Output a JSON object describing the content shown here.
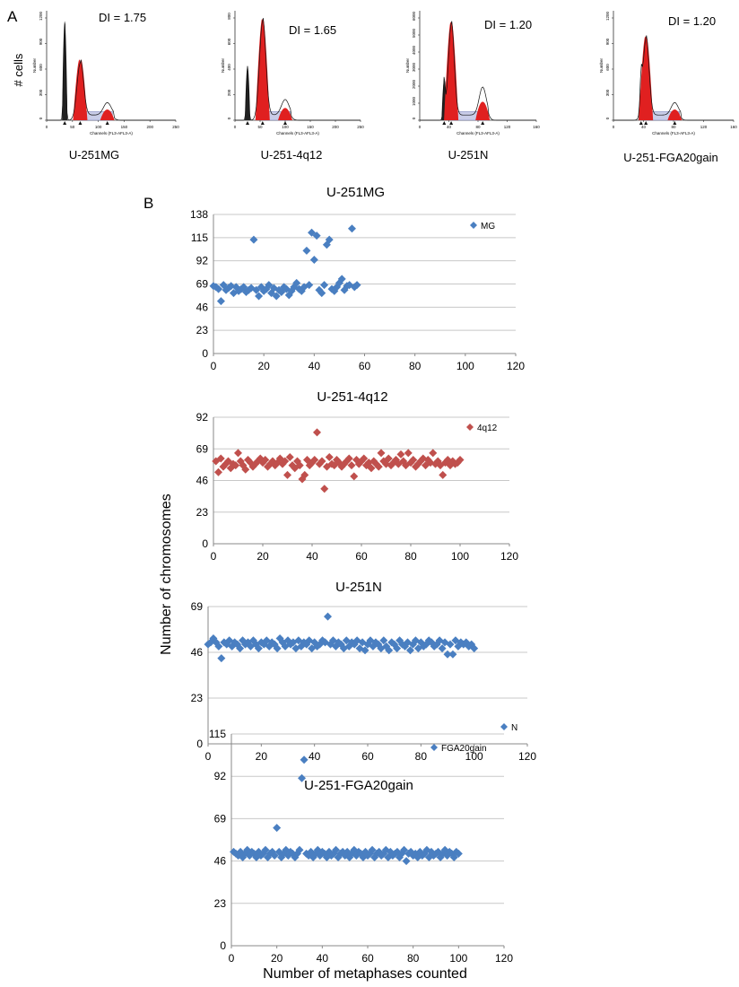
{
  "figure": {
    "panel_a_label": "A",
    "panel_b_label": "B",
    "cells_axis_label": "# cells",
    "shared_ylabel": "Number of chromosomes",
    "shared_xlabel": "Number of metaphases counted"
  },
  "histograms": [
    {
      "name": "U-251MG",
      "di_text": "DI = 1.75",
      "y_axis_text": "Number",
      "x_axis_text": "Channels (FL3-AFL3-A)",
      "x_ticks": [
        "0",
        "50",
        "100",
        "150",
        "200",
        "250"
      ],
      "y_ticks": [
        "0",
        "300",
        "600",
        "900",
        "1200"
      ],
      "peaks_note": "narrow black spike, red G1 peak, red G2 peak"
    },
    {
      "name": "U-251-4q12",
      "di_text": "DI = 1.65",
      "y_axis_text": "Number",
      "x_axis_text": "Channels (FL3-AFL3-A)",
      "x_ticks": [
        "0",
        "50",
        "100",
        "150",
        "200",
        "250"
      ],
      "y_ticks": [
        "0",
        "200",
        "400",
        "600",
        "800"
      ],
      "peaks_note": "narrow black spike, red G1 peak, red G2 peak"
    },
    {
      "name": "U-251N",
      "di_text": "DI = 1.20",
      "y_axis_text": "Number",
      "x_axis_text": "Channels (FL3-AFL3-A)",
      "x_ticks": [
        "0",
        "40",
        "80",
        "120",
        "160"
      ],
      "y_ticks": [
        "0",
        "1000",
        "2000",
        "3000",
        "4000",
        "5000",
        "6000"
      ],
      "peaks_note": "black peak, red G1 peak, red G2 peak"
    },
    {
      "name": "U-251-FGA20gain",
      "di_text": "DI = 1.20",
      "y_axis_text": "Number",
      "x_axis_text": "Channels (FL3-AFL3-A)",
      "x_ticks": [
        "0",
        "40",
        "80",
        "120",
        "160"
      ],
      "y_ticks": [
        "0",
        "300",
        "600",
        "900",
        "1200"
      ],
      "peaks_note": "grey peak, red G1 peak, red G2 peak"
    }
  ],
  "chart_data": [
    {
      "type": "scatter",
      "title": "U-251MG",
      "legend": "MG",
      "color": "#4a7fc1",
      "xlim": [
        0,
        120
      ],
      "xticks": [
        0,
        20,
        40,
        60,
        80,
        100,
        120
      ],
      "ylim": [
        0,
        138
      ],
      "yticks": [
        0,
        23,
        46,
        69,
        92,
        115,
        138
      ],
      "grid": true,
      "legend_position": "top-right",
      "x": [
        0,
        1,
        2,
        3,
        4,
        5,
        6,
        7,
        8,
        9,
        10,
        11,
        12,
        13,
        14,
        15,
        16,
        17,
        18,
        19,
        20,
        21,
        22,
        23,
        24,
        25,
        26,
        27,
        28,
        29,
        30,
        31,
        32,
        33,
        34,
        35,
        36,
        37,
        38,
        39,
        40,
        41,
        42,
        43,
        44,
        45,
        46,
        47,
        48,
        49,
        50,
        51,
        52,
        53,
        54,
        55,
        56,
        57
      ],
      "y": [
        67,
        66,
        64,
        52,
        68,
        63,
        65,
        67,
        60,
        66,
        62,
        64,
        66,
        61,
        63,
        65,
        113,
        63,
        57,
        66,
        62,
        64,
        68,
        60,
        65,
        57,
        63,
        61,
        66,
        64,
        58,
        62,
        66,
        70,
        64,
        62,
        66,
        102,
        68,
        120,
        93,
        117,
        63,
        60,
        68,
        108,
        113,
        64,
        62,
        66,
        70,
        74,
        63,
        67,
        68,
        124,
        66,
        68
      ]
    },
    {
      "type": "scatter",
      "title": "U-251-4q12",
      "legend": "4q12",
      "color": "#c0504d",
      "xlim": [
        0,
        120
      ],
      "xticks": [
        0,
        20,
        40,
        60,
        80,
        100,
        120
      ],
      "ylim": [
        0,
        92
      ],
      "yticks": [
        0,
        23,
        46,
        69,
        92
      ],
      "grid": true,
      "legend_position": "top-right",
      "x": [
        1,
        2,
        3,
        4,
        5,
        6,
        7,
        8,
        9,
        10,
        11,
        12,
        13,
        14,
        15,
        16,
        17,
        18,
        19,
        20,
        21,
        22,
        23,
        24,
        25,
        26,
        27,
        28,
        29,
        30,
        31,
        32,
        33,
        34,
        35,
        36,
        37,
        38,
        39,
        40,
        41,
        42,
        43,
        44,
        45,
        46,
        47,
        48,
        49,
        50,
        51,
        52,
        53,
        54,
        55,
        56,
        57,
        58,
        59,
        60,
        61,
        62,
        63,
        64,
        65,
        66,
        67,
        68,
        69,
        70,
        71,
        72,
        73,
        74,
        75,
        76,
        77,
        78,
        79,
        80,
        81,
        82,
        83,
        84,
        85,
        86,
        87,
        88,
        89,
        90,
        91,
        92,
        93,
        94,
        95,
        96,
        97,
        98,
        99,
        100
      ],
      "y": [
        60,
        52,
        62,
        56,
        58,
        60,
        55,
        58,
        57,
        66,
        60,
        57,
        54,
        61,
        59,
        56,
        58,
        60,
        62,
        59,
        61,
        56,
        58,
        60,
        57,
        59,
        62,
        58,
        60,
        50,
        63,
        57,
        55,
        60,
        57,
        47,
        50,
        61,
        57,
        59,
        61,
        81,
        58,
        60,
        40,
        56,
        63,
        58,
        57,
        61,
        59,
        56,
        58,
        60,
        62,
        57,
        49,
        61,
        58,
        60,
        62,
        57,
        59,
        55,
        60,
        58,
        56,
        66,
        60,
        58,
        62,
        57,
        59,
        61,
        58,
        65,
        60,
        57,
        66,
        59,
        61,
        56,
        58,
        60,
        62,
        57,
        61,
        59,
        66,
        58,
        60,
        57,
        50,
        59,
        61,
        57,
        60,
        58,
        59,
        61
      ]
    },
    {
      "type": "scatter",
      "title": "U-251N",
      "legend": "N",
      "color": "#4a7fc1",
      "xlim": [
        0,
        120
      ],
      "xticks": [
        0,
        20,
        40,
        60,
        80,
        100,
        120
      ],
      "ylim": [
        0,
        69
      ],
      "yticks": [
        0,
        23,
        46,
        69
      ],
      "grid": true,
      "legend_position": "bottom-right",
      "x": [
        0,
        1,
        2,
        3,
        4,
        5,
        6,
        7,
        8,
        9,
        10,
        11,
        12,
        13,
        14,
        15,
        16,
        17,
        18,
        19,
        20,
        21,
        22,
        23,
        24,
        25,
        26,
        27,
        28,
        29,
        30,
        31,
        32,
        33,
        34,
        35,
        36,
        37,
        38,
        39,
        40,
        41,
        42,
        43,
        44,
        45,
        46,
        47,
        48,
        49,
        50,
        51,
        52,
        53,
        54,
        55,
        56,
        57,
        58,
        59,
        60,
        61,
        62,
        63,
        64,
        65,
        66,
        67,
        68,
        69,
        70,
        71,
        72,
        73,
        74,
        75,
        76,
        77,
        78,
        79,
        80,
        81,
        82,
        83,
        84,
        85,
        86,
        87,
        88,
        89,
        90,
        91,
        92,
        93,
        94,
        95,
        96,
        97,
        98,
        99,
        100
      ],
      "y": [
        50,
        51,
        53,
        51,
        49,
        43,
        51,
        50,
        52,
        49,
        51,
        50,
        48,
        52,
        50,
        51,
        49,
        52,
        50,
        48,
        51,
        50,
        52,
        49,
        51,
        50,
        48,
        53,
        51,
        49,
        52,
        50,
        51,
        48,
        52,
        49,
        51,
        50,
        52,
        48,
        51,
        49,
        50,
        52,
        51,
        64,
        50,
        52,
        49,
        51,
        50,
        48,
        52,
        49,
        51,
        50,
        52,
        48,
        51,
        47,
        50,
        52,
        49,
        51,
        50,
        48,
        52,
        49,
        47,
        51,
        50,
        48,
        52,
        50,
        49,
        51,
        47,
        50,
        52,
        48,
        51,
        49,
        50,
        52,
        51,
        49,
        50,
        52,
        48,
        51,
        45,
        50,
        45,
        52,
        49,
        51,
        50,
        51,
        49,
        50,
        48
      ]
    },
    {
      "type": "scatter",
      "title": "U-251-FGA20gain",
      "legend": "FGA20gain",
      "color": "#4a7fc1",
      "xlim": [
        0,
        120
      ],
      "xticks": [
        0,
        20,
        40,
        60,
        80,
        100,
        120
      ],
      "ylim": [
        0,
        115
      ],
      "yticks": [
        0,
        23,
        46,
        69,
        92,
        115
      ],
      "grid": true,
      "legend_position": "top-right",
      "x": [
        1,
        2,
        3,
        4,
        5,
        6,
        7,
        8,
        9,
        10,
        11,
        12,
        13,
        14,
        15,
        16,
        17,
        18,
        19,
        20,
        21,
        22,
        23,
        24,
        25,
        26,
        27,
        28,
        29,
        30,
        31,
        32,
        33,
        34,
        35,
        36,
        37,
        38,
        39,
        40,
        41,
        42,
        43,
        44,
        45,
        46,
        47,
        48,
        49,
        50,
        51,
        52,
        53,
        54,
        55,
        56,
        57,
        58,
        59,
        60,
        61,
        62,
        63,
        64,
        65,
        66,
        67,
        68,
        69,
        70,
        71,
        72,
        73,
        74,
        75,
        76,
        77,
        78,
        79,
        80,
        81,
        82,
        83,
        84,
        85,
        86,
        87,
        88,
        89,
        90,
        91,
        92,
        93,
        94,
        95,
        96,
        97,
        98,
        99,
        100
      ],
      "y": [
        51,
        50,
        49,
        51,
        48,
        50,
        52,
        49,
        51,
        50,
        48,
        51,
        49,
        50,
        52,
        48,
        50,
        51,
        49,
        64,
        51,
        48,
        50,
        52,
        49,
        51,
        50,
        48,
        50,
        52,
        91,
        101,
        50,
        49,
        51,
        48,
        50,
        52,
        49,
        51,
        50,
        48,
        51,
        49,
        50,
        52,
        48,
        50,
        51,
        49,
        51,
        48,
        50,
        52,
        49,
        51,
        50,
        48,
        51,
        49,
        50,
        52,
        48,
        50,
        51,
        49,
        50,
        52,
        48,
        51,
        49,
        50,
        51,
        48,
        50,
        52,
        46,
        50,
        51,
        49,
        50,
        48,
        51,
        49,
        50,
        52,
        48,
        51,
        49,
        50,
        51,
        48,
        50,
        52,
        49,
        51,
        50,
        48,
        51,
        50
      ]
    }
  ]
}
